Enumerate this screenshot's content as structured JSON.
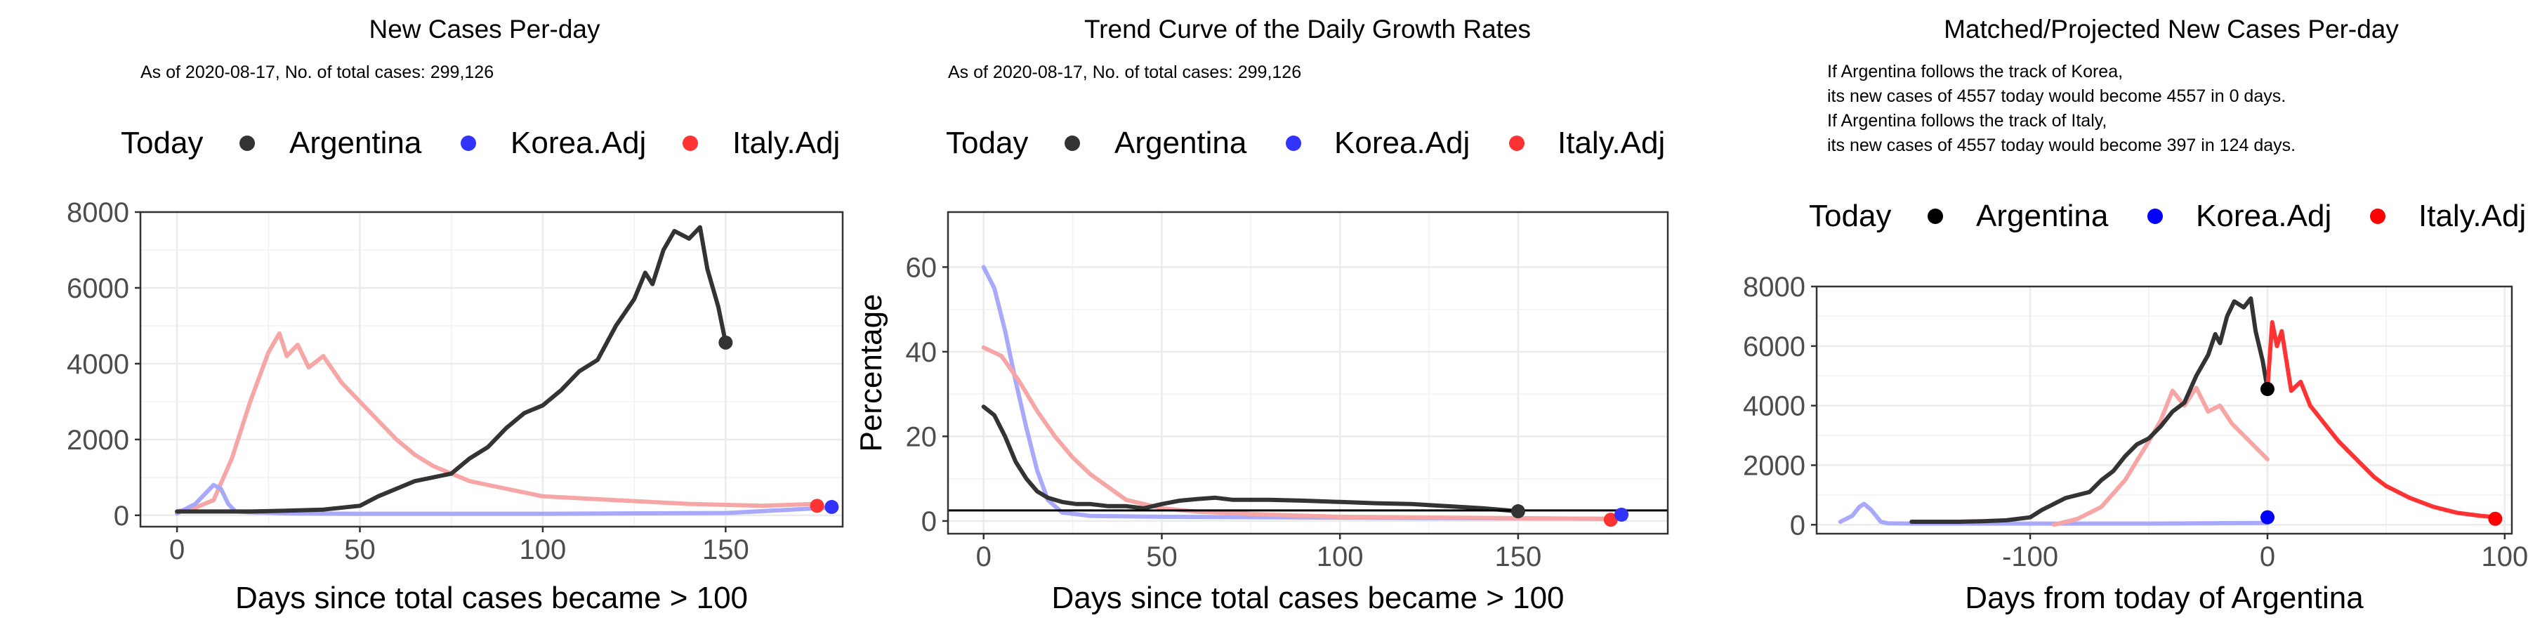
{
  "panels": [
    {
      "title": "New Cases Per-day",
      "notes": [
        "As of 2020-08-17, No. of total cases: 299,126"
      ],
      "legend": {
        "title": "Today",
        "items": [
          {
            "label": "Argentina",
            "color": "#333333"
          },
          {
            "label": "Korea.Adj",
            "color": "#3333ff"
          },
          {
            "label": "Italy.Adj",
            "color": "#ff3333"
          }
        ]
      }
    },
    {
      "title": "Trend Curve of the Daily Growth Rates",
      "notes": [
        "As of 2020-08-17, No. of total cases: 299,126"
      ],
      "legend": {
        "title": "Today",
        "items": [
          {
            "label": "Argentina",
            "color": "#333333"
          },
          {
            "label": "Korea.Adj",
            "color": "#3333ff"
          },
          {
            "label": "Italy.Adj",
            "color": "#ff3333"
          }
        ]
      }
    },
    {
      "title": "Matched/Projected New Cases Per-day",
      "notes": [
        "If Argentina follows the track of Korea,",
        "its new cases of 4557 today would become 4557 in 0 days.",
        "If Argentina follows the track of Italy,",
        "its new cases of 4557 today would become 397 in 124 days."
      ],
      "legend": {
        "title": "Today",
        "items": [
          {
            "label": "Argentina",
            "color": "#000000"
          },
          {
            "label": "Korea.Adj",
            "color": "#0000ff"
          },
          {
            "label": "Italy.Adj",
            "color": "#ff0000"
          }
        ]
      }
    }
  ],
  "chart_data": [
    {
      "type": "line",
      "title": "New Cases Per-day",
      "xlabel": "Days since total cases became > 100",
      "ylabel": "",
      "xlim": [
        -10,
        182
      ],
      "ylim": [
        -300,
        8000
      ],
      "xticks": [
        0,
        50,
        100,
        150
      ],
      "yticks": [
        0,
        2000,
        4000,
        6000,
        8000
      ],
      "series": [
        {
          "name": "Italy.Adj",
          "color": "#f7a6a6",
          "x": [
            0,
            5,
            10,
            15,
            20,
            25,
            28,
            30,
            33,
            36,
            40,
            45,
            50,
            55,
            60,
            65,
            70,
            80,
            90,
            100,
            120,
            140,
            160,
            175
          ],
          "y": [
            100,
            200,
            400,
            1500,
            3000,
            4300,
            4800,
            4200,
            4500,
            3900,
            4200,
            3500,
            3000,
            2500,
            2000,
            1600,
            1300,
            900,
            700,
            500,
            400,
            300,
            250,
            300
          ]
        },
        {
          "name": "Korea.Adj",
          "color": "#a9a9fb",
          "x": [
            0,
            5,
            8,
            10,
            12,
            14,
            16,
            20,
            30,
            50,
            100,
            150,
            178
          ],
          "y": [
            50,
            300,
            600,
            800,
            700,
            300,
            100,
            80,
            50,
            40,
            40,
            60,
            200
          ]
        },
        {
          "name": "Argentina",
          "color": "#333333",
          "x": [
            0,
            10,
            20,
            30,
            40,
            50,
            55,
            60,
            65,
            70,
            75,
            80,
            85,
            90,
            95,
            100,
            105,
            110,
            115,
            120,
            125,
            128,
            130,
            133,
            136,
            140,
            143,
            145,
            148,
            150
          ],
          "y": [
            100,
            100,
            100,
            120,
            150,
            250,
            500,
            700,
            900,
            1000,
            1100,
            1500,
            1800,
            2300,
            2700,
            2900,
            3300,
            3800,
            4100,
            5000,
            5700,
            6400,
            6100,
            7000,
            7500,
            7300,
            7600,
            6500,
            5500,
            4557
          ]
        }
      ],
      "today_points": [
        {
          "name": "Argentina",
          "x": 150,
          "y": 4557,
          "color": "#333333"
        },
        {
          "name": "Italy.Adj",
          "x": 175,
          "y": 250,
          "color": "#ff3333"
        },
        {
          "name": "Korea.Adj",
          "x": 179,
          "y": 220,
          "color": "#3333ff"
        }
      ]
    },
    {
      "type": "line",
      "title": "Trend Curve of the Daily Growth Rates",
      "xlabel": "Days since total cases became > 100",
      "ylabel": "Percentage",
      "xlim": [
        -10,
        192
      ],
      "ylim": [
        -3,
        73
      ],
      "xticks": [
        0,
        50,
        100,
        150
      ],
      "yticks": [
        0,
        20,
        40,
        60
      ],
      "hline": 2.5,
      "series": [
        {
          "name": "Korea.Adj",
          "color": "#a9a9fb",
          "x": [
            0,
            3,
            6,
            9,
            12,
            15,
            18,
            22,
            30,
            50,
            100,
            150,
            180
          ],
          "y": [
            60,
            55,
            45,
            33,
            22,
            12,
            5,
            2,
            1.2,
            1,
            0.8,
            0.6,
            0.5
          ]
        },
        {
          "name": "Italy.Adj",
          "color": "#f7a6a6",
          "x": [
            0,
            5,
            10,
            15,
            20,
            25,
            30,
            35,
            40,
            50,
            60,
            80,
            100,
            130,
            175
          ],
          "y": [
            41,
            39,
            33,
            26,
            20,
            15,
            11,
            8,
            5,
            3,
            2.2,
            1.5,
            1,
            0.8,
            0.5
          ]
        },
        {
          "name": "Argentina",
          "color": "#333333",
          "x": [
            0,
            3,
            6,
            9,
            12,
            15,
            18,
            22,
            26,
            30,
            35,
            40,
            45,
            50,
            55,
            60,
            65,
            70,
            80,
            90,
            100,
            110,
            120,
            130,
            140,
            150
          ],
          "y": [
            27,
            25,
            20,
            14,
            10,
            7,
            5.5,
            4.5,
            4,
            4,
            3.5,
            3.5,
            3,
            4,
            4.8,
            5.2,
            5.5,
            5,
            5,
            4.8,
            4.5,
            4.2,
            4,
            3.5,
            3,
            2.3
          ]
        }
      ],
      "today_points": [
        {
          "name": "Argentina",
          "x": 150,
          "y": 2.3,
          "color": "#333333"
        },
        {
          "name": "Italy.Adj",
          "x": 176,
          "y": 0.3,
          "color": "#ff3333"
        },
        {
          "name": "Korea.Adj",
          "x": 179,
          "y": 1.5,
          "color": "#3333ff"
        }
      ]
    },
    {
      "type": "line",
      "title": "Matched/Projected New Cases Per-day",
      "xlabel": "Days from today of Argentina",
      "ylabel": "",
      "xlim": [
        -190,
        103
      ],
      "ylim": [
        -300,
        8000
      ],
      "xticks": [
        -100,
        0,
        100
      ],
      "yticks": [
        0,
        2000,
        4000,
        6000,
        8000
      ],
      "series": [
        {
          "name": "Korea.Adj",
          "color": "#a9a9fb",
          "x": [
            -180,
            -175,
            -172,
            -170,
            -167,
            -163,
            -160,
            -150,
            -100,
            -50,
            0
          ],
          "y": [
            100,
            300,
            600,
            700,
            500,
            100,
            50,
            40,
            40,
            40,
            60
          ]
        },
        {
          "name": "Italy.Adj (past)",
          "color": "#f7a6a6",
          "x": [
            -90,
            -80,
            -70,
            -60,
            -50,
            -45,
            -40,
            -35,
            -30,
            -25,
            -20,
            -15,
            -10,
            -5,
            0
          ],
          "y": [
            0,
            200,
            600,
            1500,
            2800,
            3500,
            4500,
            4000,
            4600,
            3800,
            4000,
            3400,
            3000,
            2600,
            2200
          ]
        },
        {
          "name": "Argentina",
          "color": "#333333",
          "x": [
            -150,
            -140,
            -130,
            -120,
            -110,
            -100,
            -95,
            -90,
            -85,
            -80,
            -75,
            -70,
            -65,
            -60,
            -55,
            -50,
            -45,
            -40,
            -35,
            -30,
            -25,
            -22,
            -20,
            -17,
            -14,
            -10,
            -7,
            -5,
            -2,
            0
          ],
          "y": [
            100,
            100,
            100,
            120,
            150,
            250,
            500,
            700,
            900,
            1000,
            1100,
            1500,
            1800,
            2300,
            2700,
            2900,
            3300,
            3800,
            4100,
            5000,
            5700,
            6400,
            6100,
            7000,
            7500,
            7300,
            7600,
            6500,
            5500,
            4557
          ]
        },
        {
          "name": "Italy.Adj (projected)",
          "color": "#ff3333",
          "x": [
            0,
            2,
            4,
            6,
            8,
            10,
            14,
            18,
            22,
            26,
            30,
            35,
            40,
            45,
            50,
            55,
            60,
            70,
            80,
            90,
            97
          ],
          "y": [
            4557,
            6800,
            6000,
            6500,
            5500,
            4500,
            4800,
            4000,
            3600,
            3200,
            2800,
            2400,
            2000,
            1600,
            1300,
            1100,
            900,
            600,
            400,
            300,
            250
          ]
        }
      ],
      "today_points": [
        {
          "name": "Argentina",
          "x": 0,
          "y": 4557,
          "color": "#000000"
        },
        {
          "name": "Korea.Adj",
          "x": 0,
          "y": 250,
          "color": "#0000ff"
        },
        {
          "name": "Italy.Adj",
          "x": 96,
          "y": 200,
          "color": "#ff0000"
        }
      ]
    }
  ]
}
